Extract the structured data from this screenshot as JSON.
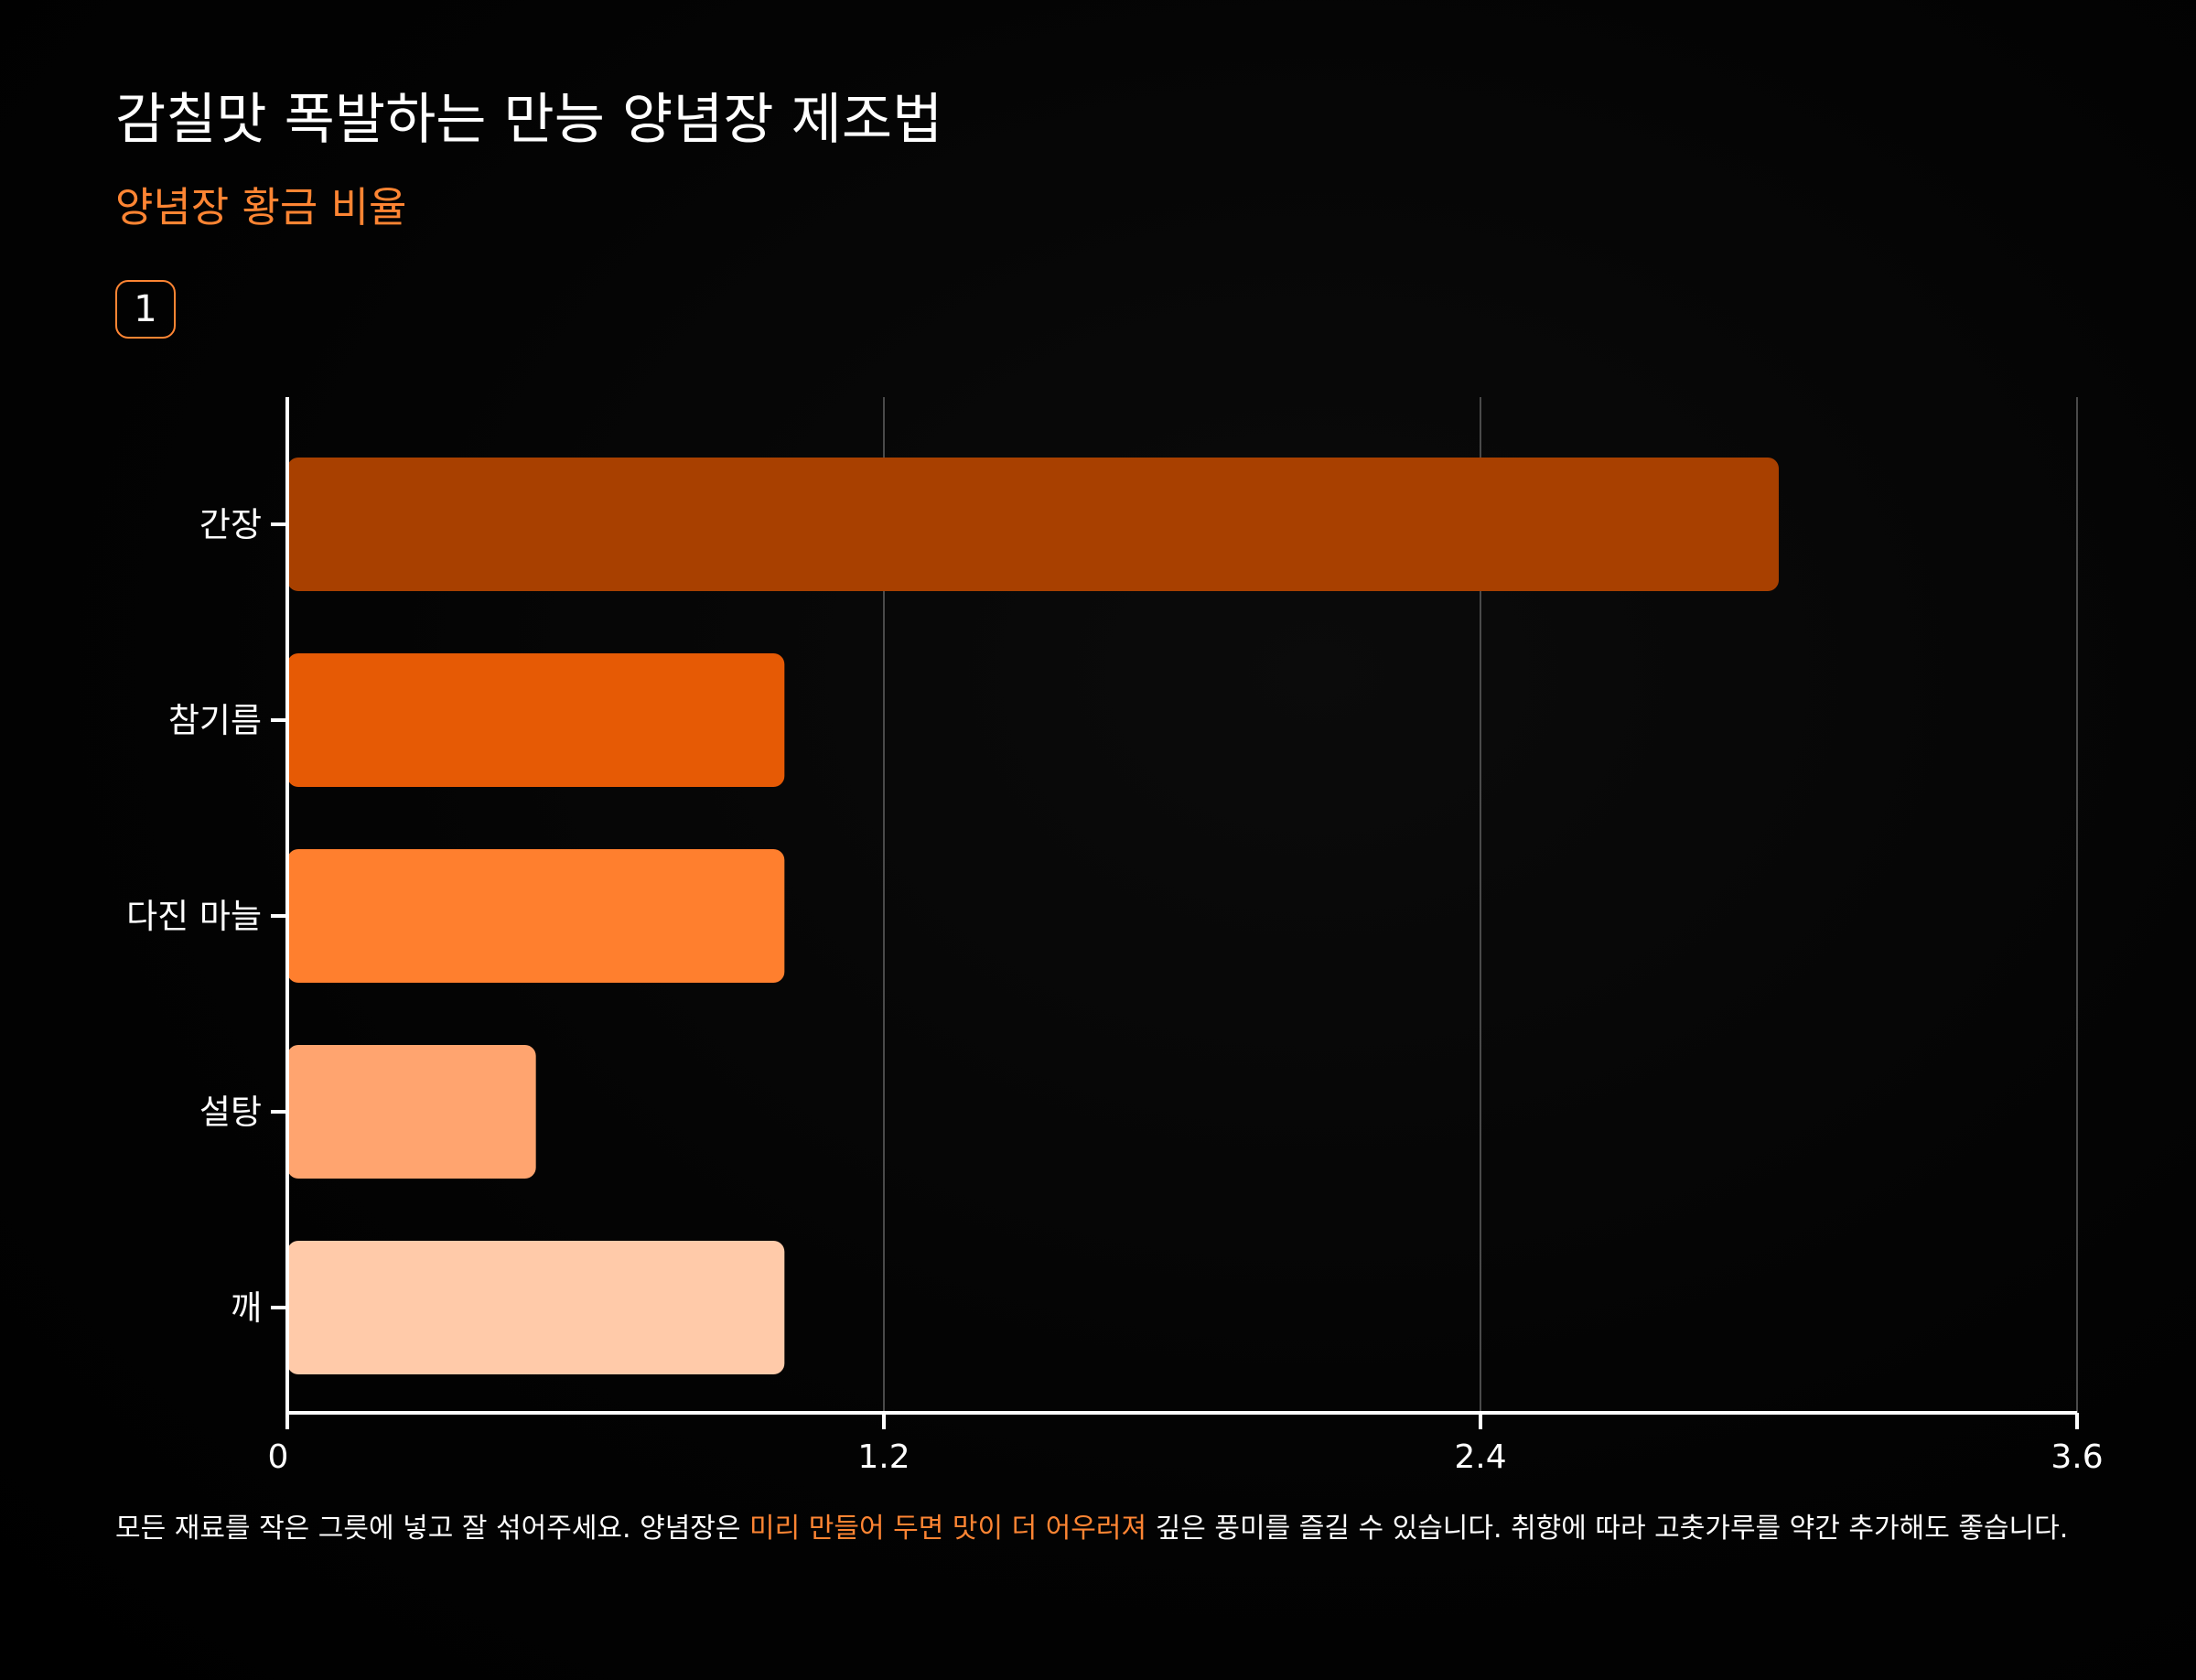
{
  "header": {
    "title": "감칠맛 폭발하는 만능 양념장 제조법",
    "subtitle": "양념장 황금 비율",
    "step": "1"
  },
  "chart_data": {
    "type": "bar",
    "orientation": "horizontal",
    "categories": [
      "간장",
      "참기름",
      "다진 마늘",
      "설탕",
      "깨"
    ],
    "values": [
      3,
      1,
      1,
      0.5,
      1
    ],
    "colors": [
      "#a84000",
      "#e65a05",
      "#ff7f2e",
      "#ffa46f",
      "#ffcaa9"
    ],
    "xlim": [
      0,
      3.6
    ],
    "xticks": [
      0,
      1.2,
      2.4,
      3.6
    ],
    "xtick_labels": [
      "0",
      "1.2",
      "2.4",
      "3.6"
    ],
    "grid": true,
    "legend": "none"
  },
  "footnote": {
    "before": "모든 재료를 작은 그릇에 넣고 잘 섞어주세요. 양념장은 ",
    "highlight": "미리 만들어 두면 맛이 더 어우러져",
    "after": " 깊은 풍미를 즐길 수 있습니다. 취향에 따라 고춧가루를 약간 추가해도 좋습니다."
  },
  "colors": {
    "background": "#000000",
    "accent": "#ff8533",
    "text": "#ffffff",
    "grid": "#4a4a4a",
    "axis": "#ffffff"
  }
}
